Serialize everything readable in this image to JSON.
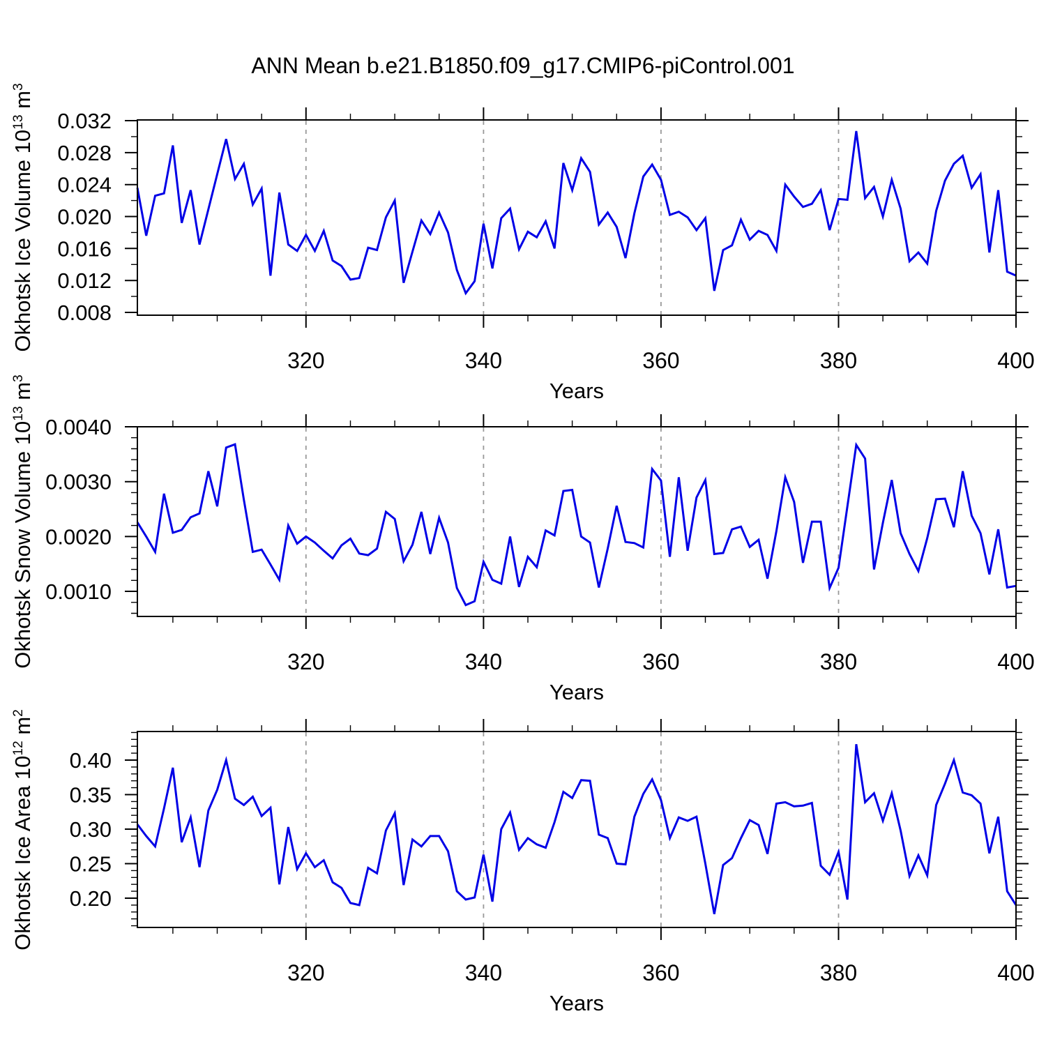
{
  "title": "ANN Mean b.e21.B1850.f09_g17.CMIP6-piControl.001",
  "colors": {
    "line": "#0000e6",
    "grid": "#999999",
    "axis": "#000000",
    "background": "#ffffff",
    "text": "#000000"
  },
  "chart_data": {
    "type": "line",
    "title": "ANN Mean b.e21.B1850.f09_g17.CMIP6-piControl.001",
    "xlabel": "Years",
    "xlim": [
      301,
      400
    ],
    "x_ticks": {
      "values": [
        320,
        340,
        360,
        380,
        400
      ],
      "labels": [
        "320",
        "340",
        "360",
        "380",
        "400"
      ],
      "minor_step": 5
    },
    "grid_x": [
      320,
      340,
      360,
      380
    ],
    "legend": "none",
    "x": [
      301,
      302,
      303,
      304,
      305,
      306,
      307,
      308,
      309,
      310,
      311,
      312,
      313,
      314,
      315,
      316,
      317,
      318,
      319,
      320,
      321,
      322,
      323,
      324,
      325,
      326,
      327,
      328,
      329,
      330,
      331,
      332,
      333,
      334,
      335,
      336,
      337,
      338,
      339,
      340,
      341,
      342,
      343,
      344,
      345,
      346,
      347,
      348,
      349,
      350,
      351,
      352,
      353,
      354,
      355,
      356,
      357,
      358,
      359,
      360,
      361,
      362,
      363,
      364,
      365,
      366,
      367,
      368,
      369,
      370,
      371,
      372,
      373,
      374,
      375,
      376,
      377,
      378,
      379,
      380,
      381,
      382,
      383,
      384,
      385,
      386,
      387,
      388,
      389,
      390,
      391,
      392,
      393,
      394,
      395,
      396,
      397,
      398,
      399,
      400
    ],
    "panels": [
      {
        "name": "okhotsk-ice-volume",
        "ylabel_parts": [
          {
            "text": "Okhotsk Ice Volume 10",
            "sup": false
          },
          {
            "text": "13",
            "sup": true
          },
          {
            "text": " m",
            "sup": false
          },
          {
            "text": "3",
            "sup": true
          }
        ],
        "ylim": [
          0.00765,
          0.03209
        ],
        "y_ticks": {
          "values": [
            0.008,
            0.012,
            0.016,
            0.02,
            0.024,
            0.028,
            0.032
          ],
          "labels": [
            "0.008",
            "0.012",
            "0.016",
            "0.020",
            "0.024",
            "0.028",
            "0.032"
          ],
          "minor_step": 0.002
        },
        "values": [
          0.0236,
          0.0176,
          0.0226,
          0.0229,
          0.0289,
          0.0192,
          0.0233,
          0.0165,
          0.0209,
          0.0253,
          0.0297,
          0.0247,
          0.0266,
          0.0215,
          0.0235,
          0.0126,
          0.023,
          0.0165,
          0.0157,
          0.0177,
          0.0157,
          0.0182,
          0.0145,
          0.0138,
          0.0121,
          0.0123,
          0.0161,
          0.0158,
          0.0199,
          0.022,
          0.0117,
          0.0156,
          0.0195,
          0.0178,
          0.0205,
          0.018,
          0.0133,
          0.0104,
          0.0119,
          0.0191,
          0.0135,
          0.0198,
          0.021,
          0.0159,
          0.0181,
          0.0174,
          0.0194,
          0.016,
          0.0267,
          0.0233,
          0.0273,
          0.0256,
          0.019,
          0.0205,
          0.0187,
          0.0148,
          0.0204,
          0.025,
          0.0265,
          0.0246,
          0.0202,
          0.0206,
          0.0199,
          0.0183,
          0.0198,
          0.0107,
          0.0158,
          0.0164,
          0.0196,
          0.0171,
          0.0182,
          0.0177,
          0.0157,
          0.024,
          0.0225,
          0.0212,
          0.0216,
          0.0233,
          0.0183,
          0.0222,
          0.0221,
          0.0307,
          0.0223,
          0.0237,
          0.02,
          0.0246,
          0.021,
          0.0144,
          0.0155,
          0.0141,
          0.0207,
          0.0245,
          0.0266,
          0.0276,
          0.0236,
          0.0253,
          0.0155,
          0.0233,
          0.0131,
          0.0126
        ]
      },
      {
        "name": "okhotsk-snow-volume",
        "ylabel_parts": [
          {
            "text": "Okhotsk Snow Volume 10",
            "sup": false
          },
          {
            "text": "13",
            "sup": true
          },
          {
            "text": " m",
            "sup": false
          },
          {
            "text": "3",
            "sup": true
          }
        ],
        "ylim": [
          0.000543,
          0.004
        ],
        "y_ticks": {
          "values": [
            0.001,
            0.002,
            0.003,
            0.004
          ],
          "labels": [
            "0.0010",
            "0.0020",
            "0.0030",
            "0.0040"
          ],
          "minor_step": 0.0002
        },
        "values": [
          0.00226,
          0.002,
          0.00172,
          0.00278,
          0.00207,
          0.00212,
          0.00235,
          0.00242,
          0.00319,
          0.00255,
          0.00362,
          0.00368,
          0.00267,
          0.00172,
          0.00176,
          0.00149,
          0.00121,
          0.0022,
          0.00187,
          0.002,
          0.00189,
          0.00174,
          0.0016,
          0.00184,
          0.00196,
          0.00169,
          0.00166,
          0.00178,
          0.00245,
          0.00232,
          0.00155,
          0.00185,
          0.00245,
          0.00168,
          0.00234,
          0.00189,
          0.00106,
          0.00075,
          0.00082,
          0.00154,
          0.00121,
          0.00114,
          0.002,
          0.00108,
          0.00163,
          0.00144,
          0.00211,
          0.00202,
          0.00283,
          0.00285,
          0.002,
          0.00189,
          0.00107,
          0.00178,
          0.00256,
          0.0019,
          0.00188,
          0.0018,
          0.00323,
          0.00302,
          0.00163,
          0.00308,
          0.00174,
          0.00271,
          0.00303,
          0.00168,
          0.0017,
          0.00213,
          0.00218,
          0.00181,
          0.00194,
          0.00123,
          0.0021,
          0.00308,
          0.00263,
          0.00152,
          0.00227,
          0.00227,
          0.00106,
          0.00143,
          0.00255,
          0.00367,
          0.00342,
          0.0014,
          0.00225,
          0.00303,
          0.00206,
          0.00168,
          0.00137,
          0.00197,
          0.00268,
          0.00269,
          0.00217,
          0.00319,
          0.00238,
          0.00206,
          0.00131,
          0.00213,
          0.00107,
          0.0011
        ]
      },
      {
        "name": "okhotsk-ice-area",
        "ylabel_parts": [
          {
            "text": "Okhotsk Ice Area 10",
            "sup": false
          },
          {
            "text": "12",
            "sup": true
          },
          {
            "text": " m",
            "sup": false
          },
          {
            "text": "2",
            "sup": true
          }
        ],
        "ylim": [
          0.1576,
          0.4414
        ],
        "y_ticks": {
          "values": [
            0.2,
            0.25,
            0.3,
            0.35,
            0.4
          ],
          "labels": [
            "0.20",
            "0.25",
            "0.30",
            "0.35",
            "0.40"
          ],
          "minor_step": 0.01
        },
        "values": [
          0.307,
          0.29,
          0.275,
          0.33,
          0.389,
          0.281,
          0.317,
          0.245,
          0.327,
          0.357,
          0.4,
          0.344,
          0.335,
          0.347,
          0.319,
          0.331,
          0.22,
          0.303,
          0.242,
          0.265,
          0.245,
          0.255,
          0.223,
          0.215,
          0.193,
          0.19,
          0.244,
          0.236,
          0.298,
          0.323,
          0.219,
          0.285,
          0.275,
          0.29,
          0.29,
          0.268,
          0.21,
          0.198,
          0.201,
          0.263,
          0.195,
          0.3,
          0.324,
          0.27,
          0.287,
          0.278,
          0.273,
          0.31,
          0.354,
          0.345,
          0.371,
          0.37,
          0.292,
          0.287,
          0.25,
          0.249,
          0.318,
          0.351,
          0.372,
          0.342,
          0.287,
          0.317,
          0.312,
          0.318,
          0.25,
          0.177,
          0.248,
          0.258,
          0.287,
          0.313,
          0.306,
          0.264,
          0.337,
          0.339,
          0.333,
          0.334,
          0.338,
          0.247,
          0.234,
          0.267,
          0.198,
          0.423,
          0.339,
          0.352,
          0.312,
          0.352,
          0.298,
          0.232,
          0.262,
          0.233,
          0.335,
          0.366,
          0.4,
          0.353,
          0.349,
          0.337,
          0.265,
          0.318,
          0.21,
          0.19
        ]
      }
    ]
  }
}
